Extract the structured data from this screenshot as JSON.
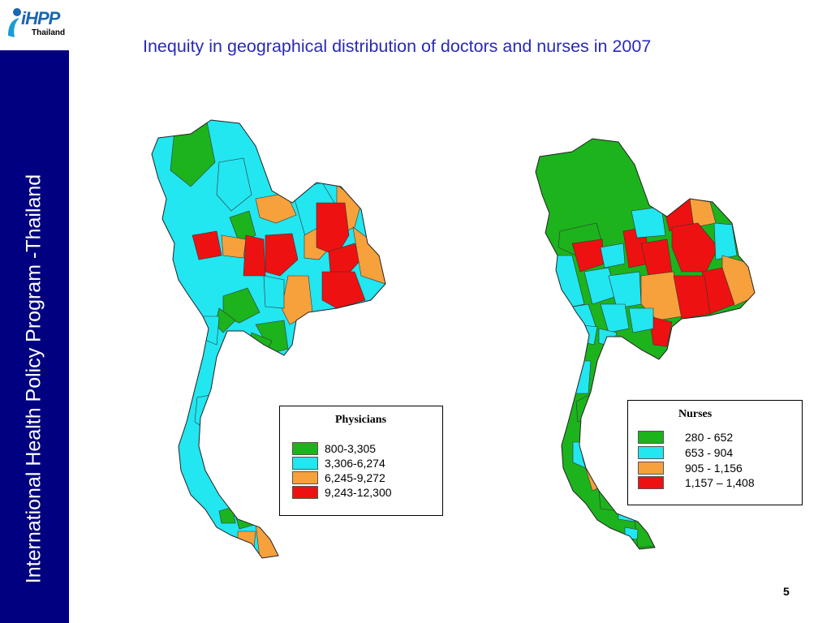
{
  "logo": {
    "mark": "iHPP",
    "subtitle": "Thailand"
  },
  "sidebar": {
    "text": "International Health Policy Program -Thailand",
    "color": "#000080"
  },
  "title": "Inequity in geographical distribution of doctors and nurses in 2007",
  "legend_colors": {
    "green": "#1db31d",
    "cyan": "#22e6f0",
    "orange": "#f7a13c",
    "red": "#ee1111"
  },
  "maps": [
    {
      "name": "physicians",
      "legend": {
        "title": "Physicians",
        "items": [
          {
            "label": "800-3,305",
            "color": "#1db31d"
          },
          {
            "label": "3,306-6,274",
            "color": "#22e6f0"
          },
          {
            "label": "6,245-9,272",
            "color": "#f7a13c"
          },
          {
            "label": "9,243-12,300",
            "color": "#ee1111"
          }
        ]
      }
    },
    {
      "name": "nurses",
      "legend": {
        "title": "Nurses",
        "items": [
          {
            "label": "280 - 652",
            "color": "#1db31d"
          },
          {
            "label": "653 - 904",
            "color": "#22e6f0"
          },
          {
            "label": "905 - 1,156",
            "color": "#f7a13c"
          },
          {
            "label": "1,157 – 1,408",
            "color": "#ee1111"
          }
        ]
      }
    }
  ],
  "page_number": "5"
}
